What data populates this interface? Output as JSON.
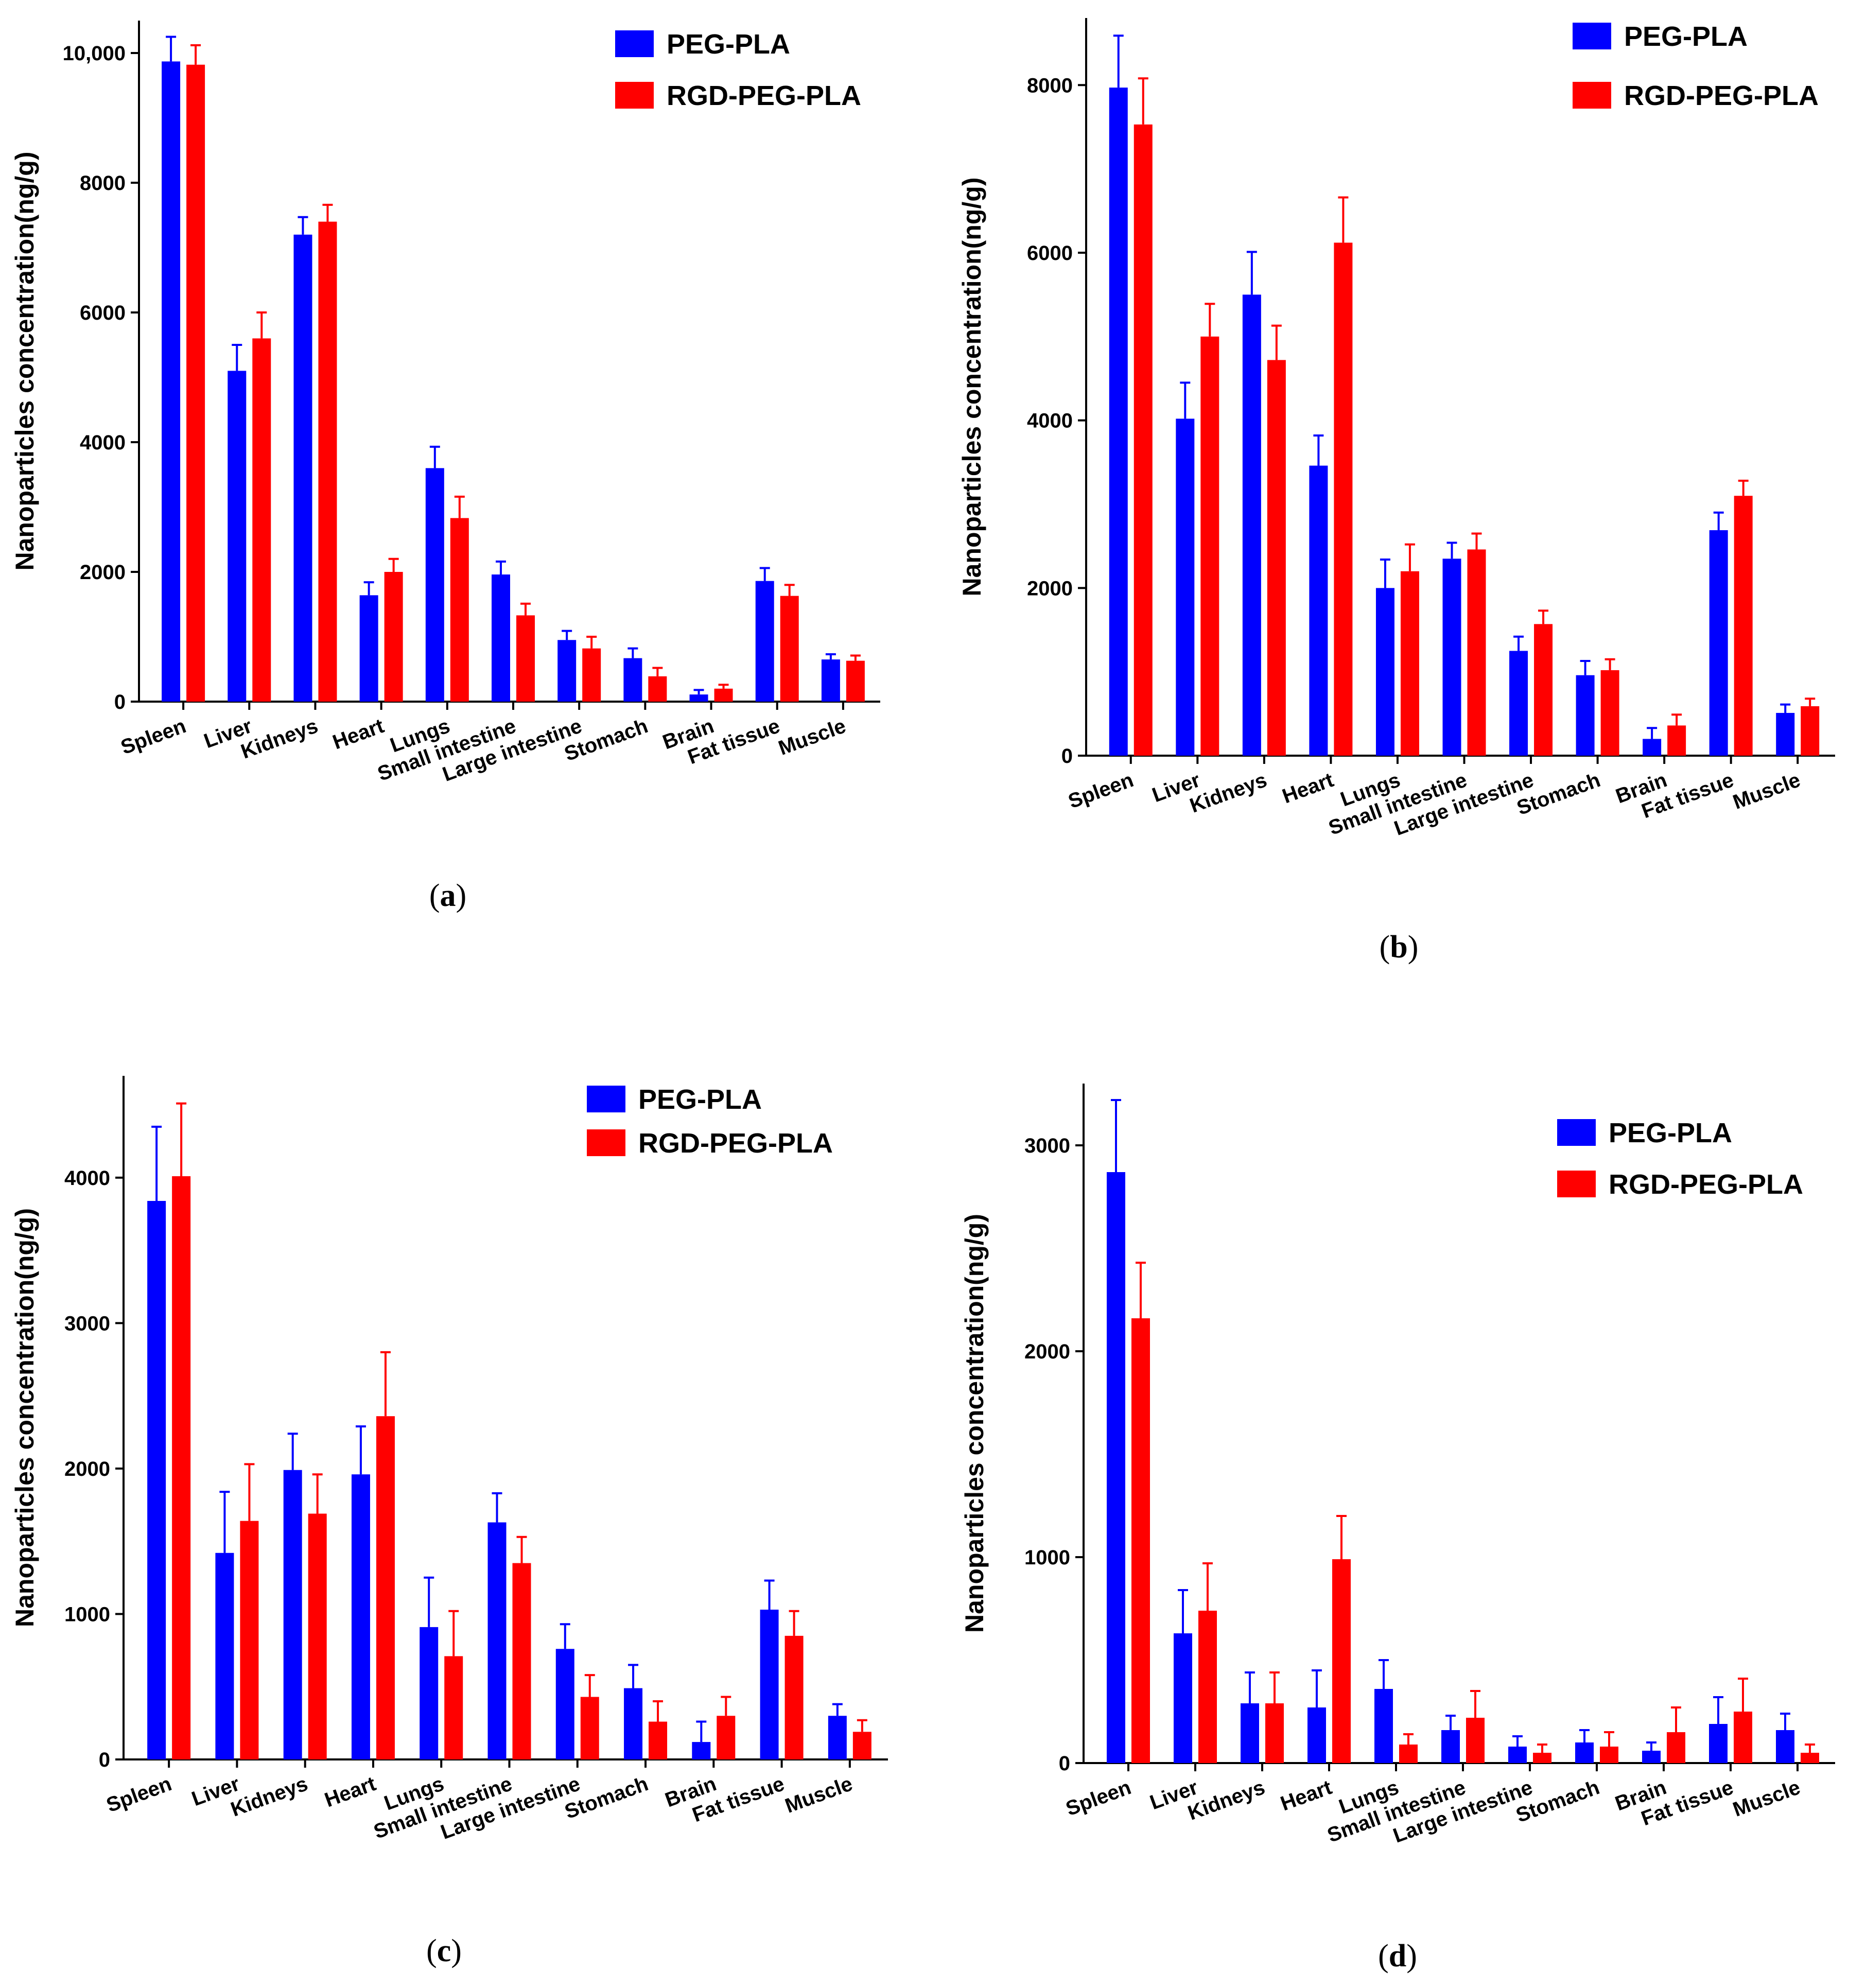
{
  "colors": {
    "PEG-PLA": "#0000ff",
    "RGD-PEG-PLA": "#ff0000",
    "axis": "#000000"
  },
  "chart_data": [
    {
      "type": "bar",
      "panel": "(a)",
      "caption_letter": "a",
      "ylabel": "Nanoparticles concentration(ng/g)",
      "xlabel": "",
      "ylim": [
        0,
        10500
      ],
      "yticks": [
        0,
        2000,
        4000,
        6000,
        8000,
        10000
      ],
      "ytick_labels": [
        "0",
        "2000",
        "4000",
        "6000",
        "8000",
        "10,000"
      ],
      "legend_position": "top-right",
      "categories": [
        "Spleen",
        "Liver",
        "Kidneys",
        "Heart",
        "Lungs",
        "Small intestine",
        "Large intestine",
        "Stomach",
        "Brain",
        "Fat tissue",
        "Muscle"
      ],
      "series": [
        {
          "name": "PEG-PLA",
          "values": [
            9870,
            5100,
            7200,
            1640,
            3600,
            1960,
            950,
            670,
            110,
            1860,
            650
          ],
          "errors": [
            380,
            400,
            270,
            200,
            330,
            200,
            140,
            150,
            70,
            200,
            80
          ]
        },
        {
          "name": "RGD-PEG-PLA",
          "values": [
            9820,
            5600,
            7400,
            2000,
            2830,
            1330,
            820,
            390,
            200,
            1630,
            630
          ],
          "errors": [
            300,
            400,
            260,
            200,
            330,
            180,
            180,
            130,
            60,
            170,
            80
          ]
        }
      ]
    },
    {
      "type": "bar",
      "panel": "(b)",
      "caption_letter": "b",
      "ylabel": "Nanoparticles concentration(ng/g)",
      "xlabel": "",
      "ylim": [
        0,
        8800
      ],
      "yticks": [
        0,
        2000,
        4000,
        6000,
        8000
      ],
      "ytick_labels": [
        "0",
        "2000",
        "4000",
        "6000",
        "8000"
      ],
      "legend_position": "top-right",
      "categories": [
        "Spleen",
        "Liver",
        "Kidneys",
        "Heart",
        "Lungs",
        "Small intestine",
        "Large intestine",
        "Stomach",
        "Brain",
        "Fat tissue",
        "Muscle"
      ],
      "series": [
        {
          "name": "PEG-PLA",
          "values": [
            7970,
            4020,
            5500,
            3460,
            2000,
            2350,
            1250,
            960,
            200,
            2690,
            510
          ],
          "errors": [
            620,
            430,
            510,
            360,
            340,
            190,
            170,
            170,
            130,
            210,
            100
          ]
        },
        {
          "name": "RGD-PEG-PLA",
          "values": [
            7530,
            5000,
            4720,
            6120,
            2200,
            2460,
            1570,
            1020,
            360,
            3100,
            590
          ],
          "errors": [
            550,
            390,
            410,
            540,
            320,
            190,
            160,
            130,
            130,
            180,
            90
          ]
        }
      ]
    },
    {
      "type": "bar",
      "panel": "(c)",
      "caption_letter": "c",
      "ylabel": "Nanoparticles concentration(ng/g)",
      "xlabel": "",
      "ylim": [
        0,
        4700
      ],
      "yticks": [
        0,
        1000,
        2000,
        3000,
        4000
      ],
      "ytick_labels": [
        "0",
        "1000",
        "2000",
        "3000",
        "4000"
      ],
      "legend_position": "top-right",
      "categories": [
        "Spleen",
        "Liver",
        "Kidneys",
        "Heart",
        "Lungs",
        "Small intestine",
        "Large intestine",
        "Stomach",
        "Brain",
        "Fat tissue",
        "Muscle"
      ],
      "series": [
        {
          "name": "PEG-PLA",
          "values": [
            3840,
            1420,
            1990,
            1960,
            910,
            1630,
            760,
            490,
            120,
            1030,
            300
          ],
          "errors": [
            510,
            420,
            250,
            330,
            340,
            200,
            170,
            160,
            140,
            200,
            80
          ]
        },
        {
          "name": "RGD-PEG-PLA",
          "values": [
            4010,
            1640,
            1690,
            2360,
            710,
            1350,
            430,
            260,
            300,
            850,
            190
          ],
          "errors": [
            500,
            390,
            270,
            440,
            310,
            180,
            150,
            140,
            130,
            170,
            80
          ]
        }
      ]
    },
    {
      "type": "bar",
      "panel": "(d)",
      "caption_letter": "d",
      "ylabel": "Nanoparticles concentration(ng/g)",
      "xlabel": "",
      "ylim": [
        0,
        3300
      ],
      "yticks": [
        0,
        1000,
        2000,
        3000
      ],
      "ytick_labels": [
        "0",
        "1000",
        "2000",
        "3000"
      ],
      "legend_position": "top-right",
      "categories": [
        "Spleen",
        "Liver",
        "Kidneys",
        "Heart",
        "Lungs",
        "Small intestine",
        "Large intestine",
        "Stomach",
        "Brain",
        "Fat tissue",
        "Muscle"
      ],
      "series": [
        {
          "name": "PEG-PLA",
          "values": [
            2870,
            630,
            290,
            270,
            360,
            160,
            80,
            100,
            60,
            190,
            160
          ],
          "errors": [
            350,
            210,
            150,
            180,
            140,
            70,
            50,
            60,
            40,
            130,
            80
          ]
        },
        {
          "name": "RGD-PEG-PLA",
          "values": [
            2160,
            740,
            290,
            990,
            90,
            220,
            50,
            80,
            150,
            250,
            50
          ],
          "errors": [
            270,
            230,
            150,
            210,
            50,
            130,
            40,
            70,
            120,
            160,
            40
          ]
        }
      ]
    }
  ]
}
